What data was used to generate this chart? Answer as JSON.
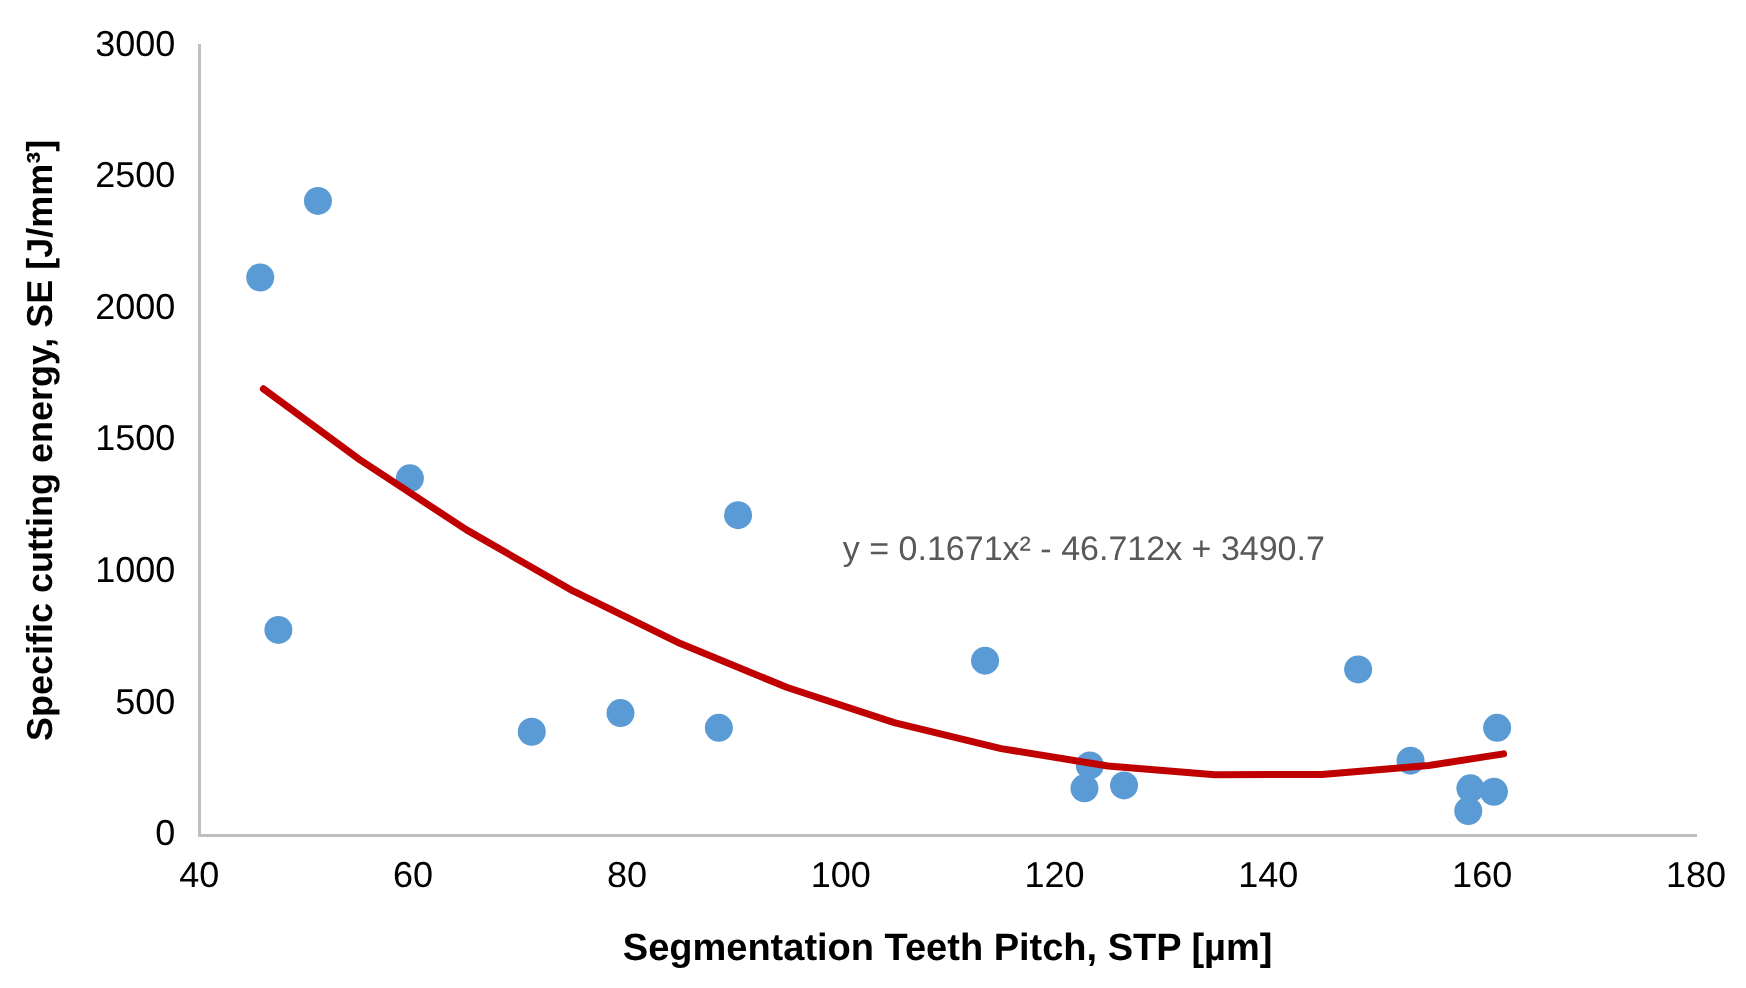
{
  "chart_data": {
    "type": "scatter",
    "xlabel": "Segmentation Teeth Pitch, STP [µm]",
    "ylabel": "Specific cutting energy, SE [J/mm³]",
    "xlim": [
      40,
      180
    ],
    "xticks": [
      40,
      60,
      80,
      100,
      120,
      140,
      160,
      180
    ],
    "ylim": [
      0,
      3000
    ],
    "yticks": [
      0,
      500,
      1000,
      1500,
      2000,
      2500,
      3000
    ],
    "grid": false,
    "legend": false,
    "annotations": [
      "y = 0.1671x² - 46.712x + 3490.7"
    ],
    "series": [
      {
        "type": "scatter",
        "color": "#5b9bd5",
        "marker": "circle",
        "x": [
          45.7,
          51.1,
          47.4,
          59.7,
          71.1,
          79.4,
          88.6,
          90.4,
          113.5,
          123.3,
          122.8,
          126.5,
          148.4,
          153.3,
          158.9,
          158.7,
          161.1,
          161.4
        ],
        "values": [
          2119,
          2410,
          780,
          1356,
          393,
          464,
          408,
          1216,
          663,
          265,
          178,
          189,
          630,
          283,
          178,
          92,
          165,
          408
        ]
      },
      {
        "type": "line",
        "color": "#c00000",
        "marker": "none",
        "line_style": "solid",
        "x": [
          46,
          55,
          65,
          75,
          85,
          95,
          105,
          115,
          125,
          135,
          145,
          155,
          162
        ],
        "values": [
          1696,
          1427,
          1160,
          927,
          728,
          561,
          428,
          329,
          263,
          230,
          231,
          265,
          309
        ]
      }
    ]
  }
}
